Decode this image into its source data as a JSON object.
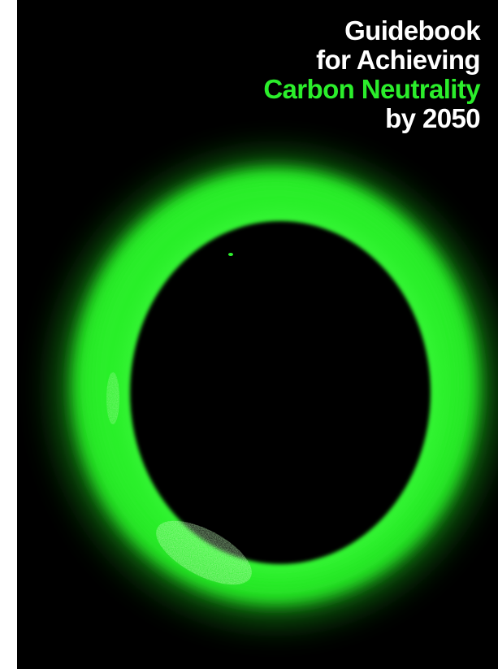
{
  "cover": {
    "title_lines": [
      "Guidebook",
      "for Achieving",
      "Carbon Neutrality",
      "by 2050"
    ],
    "highlight_line_index": 2,
    "colors": {
      "background": "#000000",
      "title_text": "#ffffff",
      "highlight_text": "#2bee2b",
      "ring_glow": "#22e622"
    },
    "artwork": "glowing-green-ring"
  }
}
